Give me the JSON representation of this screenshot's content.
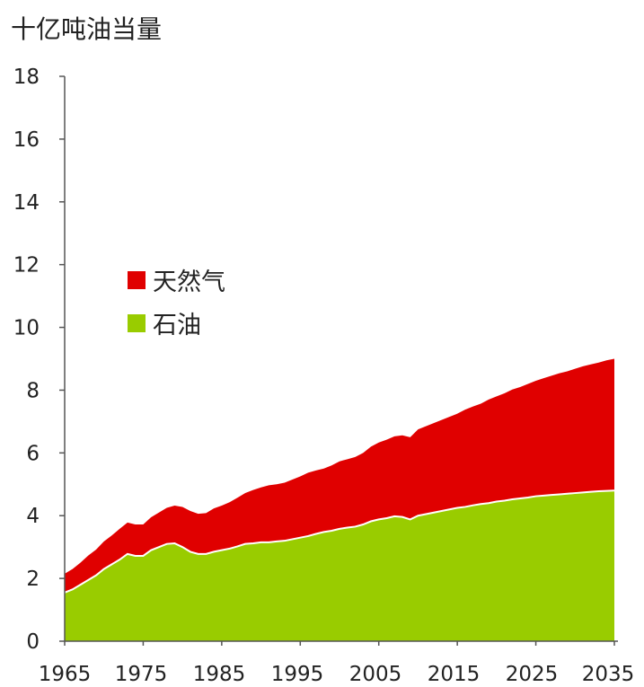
{
  "chart_data": {
    "type": "area",
    "stacked": true,
    "ylabel": "十亿吨油当量",
    "xlabel": "",
    "x_ticks": [
      "1965",
      "1975",
      "1985",
      "1995",
      "2005",
      "2015",
      "2025",
      "2035"
    ],
    "y_ticks": [
      "0",
      "2",
      "4",
      "6",
      "8",
      "10",
      "12",
      "14",
      "16",
      "18"
    ],
    "xlim": [
      1965,
      2035
    ],
    "ylim": [
      0,
      18
    ],
    "grid": false,
    "legend_position": "left-middle",
    "x": [
      1965,
      1966,
      1967,
      1968,
      1969,
      1970,
      1971,
      1972,
      1973,
      1974,
      1975,
      1976,
      1977,
      1978,
      1979,
      1980,
      1981,
      1982,
      1983,
      1984,
      1985,
      1986,
      1987,
      1988,
      1989,
      1990,
      1991,
      1992,
      1993,
      1994,
      1995,
      1996,
      1997,
      1998,
      1999,
      2000,
      2001,
      2002,
      2003,
      2004,
      2005,
      2006,
      2007,
      2008,
      2009,
      2010,
      2011,
      2012,
      2013,
      2014,
      2015,
      2016,
      2017,
      2018,
      2019,
      2020,
      2021,
      2022,
      2023,
      2024,
      2025,
      2026,
      2027,
      2028,
      2029,
      2030,
      2031,
      2032,
      2033,
      2034,
      2035
    ],
    "series": [
      {
        "name": "石油",
        "color": "#99cc00",
        "values": [
          1.55,
          1.65,
          1.8,
          1.95,
          2.1,
          2.3,
          2.45,
          2.6,
          2.78,
          2.72,
          2.72,
          2.9,
          3.0,
          3.1,
          3.12,
          3.0,
          2.85,
          2.78,
          2.78,
          2.85,
          2.9,
          2.95,
          3.02,
          3.1,
          3.12,
          3.15,
          3.15,
          3.18,
          3.2,
          3.25,
          3.3,
          3.35,
          3.42,
          3.48,
          3.52,
          3.58,
          3.62,
          3.65,
          3.72,
          3.82,
          3.88,
          3.92,
          3.98,
          3.96,
          3.88,
          4.0,
          4.05,
          4.1,
          4.15,
          4.2,
          4.25,
          4.28,
          4.33,
          4.37,
          4.4,
          4.45,
          4.48,
          4.52,
          4.55,
          4.58,
          4.62,
          4.64,
          4.66,
          4.68,
          4.7,
          4.72,
          4.74,
          4.76,
          4.78,
          4.79,
          4.8
        ]
      },
      {
        "name": "天然气",
        "color": "#e00000",
        "values": [
          0.6,
          0.65,
          0.7,
          0.78,
          0.82,
          0.88,
          0.92,
          0.98,
          1.0,
          1.0,
          1.0,
          1.05,
          1.1,
          1.15,
          1.2,
          1.28,
          1.3,
          1.28,
          1.3,
          1.38,
          1.42,
          1.48,
          1.55,
          1.62,
          1.7,
          1.75,
          1.82,
          1.82,
          1.85,
          1.9,
          1.95,
          2.02,
          2.02,
          2.02,
          2.08,
          2.15,
          2.18,
          2.22,
          2.28,
          2.38,
          2.45,
          2.5,
          2.55,
          2.6,
          2.62,
          2.75,
          2.8,
          2.85,
          2.9,
          2.95,
          3.0,
          3.1,
          3.15,
          3.2,
          3.3,
          3.35,
          3.42,
          3.5,
          3.55,
          3.62,
          3.68,
          3.74,
          3.8,
          3.86,
          3.9,
          3.96,
          4.02,
          4.06,
          4.1,
          4.16,
          4.2
        ]
      }
    ]
  }
}
